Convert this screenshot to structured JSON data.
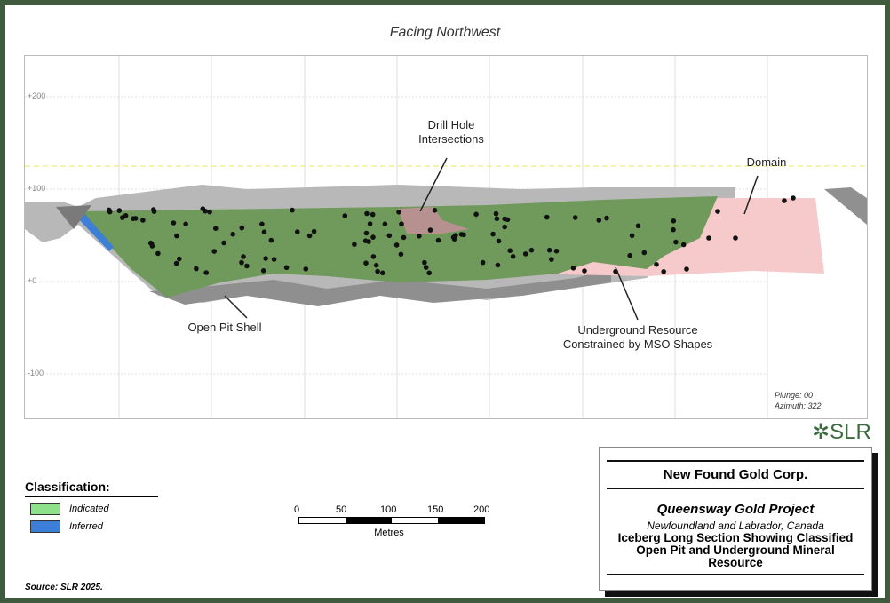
{
  "view_title": "Facing Northwest",
  "elevation_labels": {
    "e200": "+200",
    "e100": "+100",
    "e0": "+0",
    "em100": "-100"
  },
  "annotations": {
    "drill": "Drill Hole\nIntersections",
    "domain": "Domain",
    "pit": "Open Pit Shell",
    "underground": "Underground Resource\nConstrained by MSO Shapes"
  },
  "orientation": {
    "plunge": "Plunge: 00",
    "azimuth": "Azimuth: 322"
  },
  "legend": {
    "title": "Classification:",
    "items": [
      {
        "label": "Indicated",
        "color": "#8fe08a"
      },
      {
        "label": "Inferred",
        "color": "#3d7fd6"
      }
    ]
  },
  "scale_bar": {
    "ticks": [
      "0",
      "50",
      "100",
      "150",
      "200"
    ],
    "unit": "Metres"
  },
  "title_block": {
    "company": "New Found Gold Corp.",
    "project": "Queensway Gold Project",
    "location": "Newfoundland and Labrador, Canada",
    "figure_title": "Iceberg Long Section Showing Classified Open Pit and Underground Mineral Resource"
  },
  "logo": "SLR",
  "source": "Source: SLR 2025.",
  "colors": {
    "frame": "#3f5a3c",
    "indicated_block": "#6f9a5c",
    "domain": "#f6caca",
    "pit": "#a8a8a8"
  }
}
